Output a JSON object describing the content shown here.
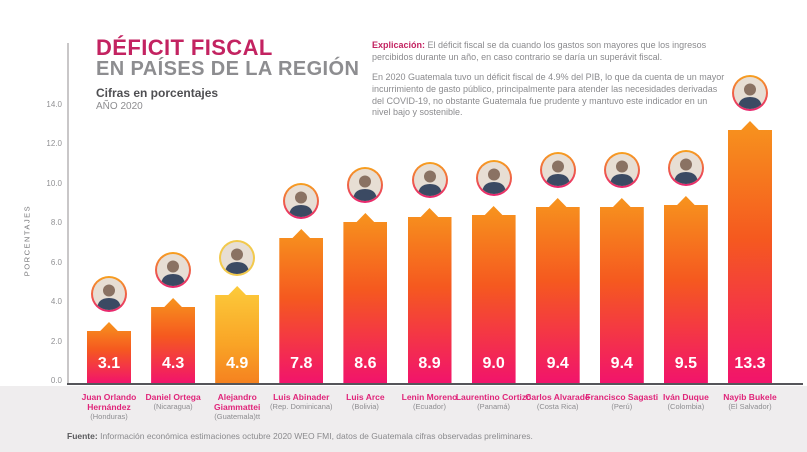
{
  "title": {
    "line1": "DÉFICIT FISCAL",
    "line2": "EN PAÍSES DE LA REGIÓN",
    "caption": "Cifras en porcentajes",
    "year": "AÑO 2020"
  },
  "explanation": {
    "label": "Explicación:",
    "p1": "El déficit fiscal se da cuando los gastos son mayores que los ingresos percibidos durante un año, en caso contrario se daría un superávit fiscal.",
    "p2": "En 2020 Guatemala tuvo un déficit fiscal de 4.9% del PIB, lo que da cuenta de un mayor incurrimiento de gasto público, principalmente para atender las necesidades derivadas del COVID-19, no obstante Guatemala fue prudente y mantuvo este indicador en un nivel bajo y sostenible."
  },
  "chart_data": {
    "type": "bar",
    "title": "DÉFICIT FISCAL EN PAÍSES DE LA REGIÓN",
    "subtitle": "Cifras en porcentajes, AÑO 2020",
    "ylabel": "PORCENTAJES",
    "ylim": [
      0,
      14
    ],
    "yticks": [
      0.0,
      2.0,
      4.0,
      6.0,
      8.0,
      10.0,
      12.0,
      14.0
    ],
    "grid": false,
    "legend": "none",
    "categories": [
      "Juan Orlando Hernández",
      "Daniel Ortega",
      "Alejandro Giammattei",
      "Luis Abinader",
      "Luis Arce",
      "Lenin Moreno",
      "Laurentino Cortizo",
      "Carlos Alvarado",
      "Francisco Sagasti",
      "Iván Duque",
      "Nayib Bukele"
    ],
    "countries": [
      "(Honduras)",
      "(Nicaragua)",
      "(Guatemala)tt",
      "(Rep. Dominicana)",
      "(Bolivia)",
      "(Ecuador)",
      "(Panamá)",
      "(Costa Rica)",
      "(Perú)",
      "(Colombia)",
      "(El Salvador)"
    ],
    "values": [
      3.1,
      4.3,
      4.9,
      7.8,
      8.6,
      8.9,
      9.0,
      9.4,
      9.4,
      9.5,
      13.3
    ],
    "highlight_index": 2,
    "colors": {
      "bar_gradient_top": "#f7941e",
      "bar_gradient_bottom": "#f2146b",
      "highlight_gradient_top": "#fccb3b",
      "highlight_gradient_bottom": "#f58220",
      "value_label": "#ffffff",
      "name_label": "#e0257a",
      "title_accent": "#c32361"
    }
  },
  "footer": {
    "label": "Fuente:",
    "text": "Información económica estimaciones octubre 2020 WEO FMI, datos de Guatemala cifras observadas preliminares."
  }
}
